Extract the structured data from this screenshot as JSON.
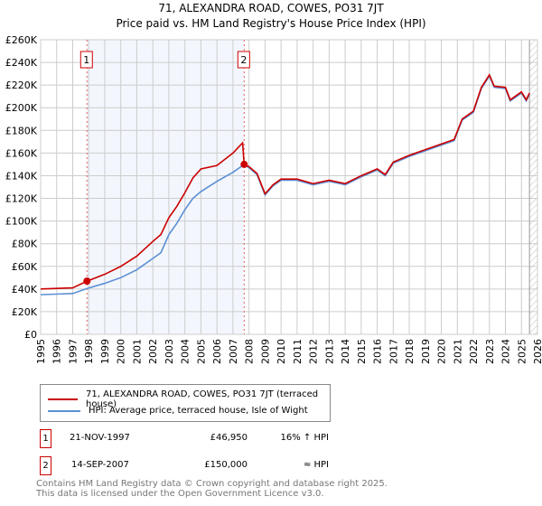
{
  "chart_data": {
    "type": "line",
    "title": "71, ALEXANDRA ROAD, COWES, PO31 7JT",
    "subtitle": "Price paid vs. HM Land Registry's House Price Index (HPI)",
    "xlim": [
      1995,
      2026
    ],
    "ylim": [
      0,
      260000
    ],
    "x_ticks": [
      "1995",
      "1996",
      "1997",
      "1998",
      "1999",
      "2000",
      "2001",
      "2002",
      "2003",
      "2004",
      "2005",
      "2006",
      "2007",
      "2008",
      "2009",
      "2010",
      "2011",
      "2012",
      "2013",
      "2014",
      "2015",
      "2016",
      "2017",
      "2018",
      "2019",
      "2020",
      "2021",
      "2022",
      "2023",
      "2024",
      "2025",
      "2026"
    ],
    "y_ticks": [
      "£0",
      "£20K",
      "£40K",
      "£60K",
      "£80K",
      "£100K",
      "£120K",
      "£140K",
      "£160K",
      "£180K",
      "£200K",
      "£220K",
      "£240K",
      "£260K"
    ],
    "grid": true,
    "series": [
      {
        "name": "71, ALEXANDRA ROAD, COWES, PO31 7JT (terraced house)",
        "color": "#cc0000",
        "x": [
          1995,
          1996,
          1997,
          1997.9,
          1999,
          2000,
          2001,
          2002,
          2002.5,
          2003,
          2003.5,
          2004,
          2004.5,
          2005,
          2006,
          2007,
          2007.6,
          2007.7,
          2008,
          2008.5,
          2009,
          2009.5,
          2010,
          2011,
          2012,
          2013,
          2014,
          2015,
          2016,
          2016.5,
          2017,
          2018,
          2019,
          2020,
          2020.8,
          2021.3,
          2022,
          2022.5,
          2023,
          2023.3,
          2024,
          2024.3,
          2025,
          2025.3,
          2025.5
        ],
        "y": [
          40000,
          40500,
          41000,
          46950,
          53000,
          60000,
          69000,
          82000,
          88000,
          103000,
          113000,
          125000,
          138000,
          146000,
          149000,
          160000,
          169000,
          150000,
          148000,
          142000,
          124000,
          132000,
          137000,
          137000,
          133000,
          136000,
          133000,
          140000,
          146000,
          141000,
          152000,
          158000,
          163000,
          168000,
          172000,
          190000,
          197000,
          218000,
          229000,
          219000,
          218000,
          207000,
          214000,
          207000,
          213000
        ]
      },
      {
        "name": "HPI: Average price, terraced house, Isle of Wight",
        "color": "#5b8fd4",
        "x": [
          1995,
          1996,
          1997,
          1997.9,
          1999,
          2000,
          2001,
          2002,
          2002.5,
          2003,
          2003.5,
          2004,
          2004.5,
          2005,
          2006,
          2007,
          2007.7,
          2008,
          2008.5,
          2009,
          2009.5,
          2010,
          2011,
          2012,
          2013,
          2014,
          2015,
          2016,
          2016.5,
          2017,
          2018,
          2019,
          2020,
          2020.8,
          2021.3,
          2022,
          2022.5,
          2023,
          2023.3,
          2024,
          2024.3,
          2025,
          2025.3,
          2025.5
        ],
        "y": [
          35000,
          35500,
          36000,
          40500,
          45000,
          50000,
          57000,
          67000,
          72000,
          88000,
          98000,
          110000,
          120000,
          126000,
          135000,
          143000,
          150000,
          147000,
          141000,
          123000,
          131000,
          136000,
          136000,
          132000,
          135000,
          132000,
          139000,
          145000,
          140000,
          151000,
          157000,
          162000,
          167000,
          171000,
          189000,
          196000,
          217000,
          228000,
          218000,
          217000,
          206000,
          213000,
          206000,
          212000
        ]
      }
    ],
    "sales": [
      {
        "label": "1",
        "date": "21-NOV-1997",
        "price": "£46,950",
        "hpi": "16% ↑ HPI",
        "x": 1997.89,
        "y": 46950
      },
      {
        "label": "2",
        "date": "14-SEP-2007",
        "price": "£150,000",
        "hpi": "≈ HPI",
        "x": 2007.7,
        "y": 150000
      }
    ],
    "hatch_from": 2025.5
  },
  "legend": {
    "property": "71, ALEXANDRA ROAD, COWES, PO31 7JT (terraced house)",
    "hpi": "HPI: Average price, terraced house, Isle of Wight"
  },
  "footer": {
    "line1": "Contains HM Land Registry data © Crown copyright and database right 2025.",
    "line2": "This data is licensed under the Open Government Licence v3.0."
  }
}
